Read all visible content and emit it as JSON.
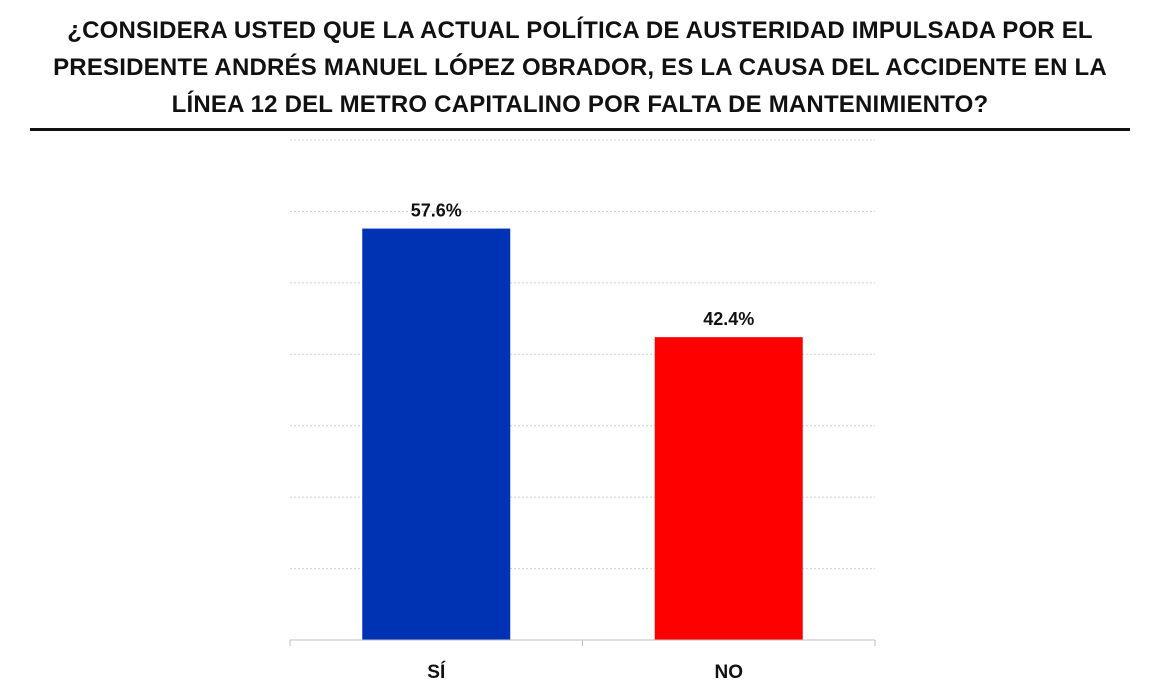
{
  "chart_data": {
    "type": "bar",
    "title": "¿CONSIDERA USTED QUE LA ACTUAL POLÍTICA DE AUSTERIDAD IMPULSADA POR EL PRESIDENTE ANDRÉS MANUEL LÓPEZ OBRADOR, ES LA CAUSA DEL ACCIDENTE EN LA LÍNEA 12 DEL METRO CAPITALINO POR FALTA DE MANTENIMIENTO?",
    "categories": [
      "SÍ",
      "NO"
    ],
    "values": [
      57.6,
      42.4
    ],
    "data_labels": [
      "57.6%",
      "42.4%"
    ],
    "colors": [
      "#0033B4",
      "#FF0000"
    ],
    "ylim": [
      0,
      70
    ],
    "grid": true,
    "xlabel": "",
    "ylabel": ""
  }
}
